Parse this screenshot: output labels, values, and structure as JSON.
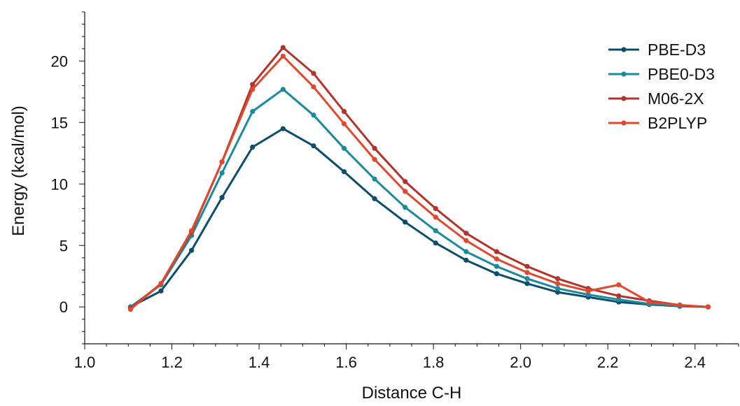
{
  "chart_data": {
    "type": "line",
    "xlabel": "Distance C-H",
    "ylabel": "Energy (kcal/mol)",
    "xlim": [
      1.0,
      2.5
    ],
    "ylim": [
      -3,
      24
    ],
    "xticks": [
      1.0,
      1.2,
      1.4,
      1.6,
      1.8,
      2.0,
      2.2,
      2.4
    ],
    "xtick_labels": [
      "1.0",
      "1.2",
      "1.4",
      "1.6",
      "1.8",
      "2.0",
      "2.2",
      "2.4"
    ],
    "yticks": [
      0,
      5,
      10,
      15,
      20
    ],
    "ytick_labels": [
      "0",
      "5",
      "10",
      "15",
      "20"
    ],
    "legend_position": "top-right",
    "grid": false,
    "x": [
      1.105,
      1.175,
      1.245,
      1.315,
      1.385,
      1.455,
      1.525,
      1.595,
      1.665,
      1.735,
      1.805,
      1.875,
      1.945,
      2.015,
      2.085,
      2.155,
      2.225,
      2.295,
      2.365,
      2.43
    ],
    "series": [
      {
        "name": "PBE-D3",
        "color": "#0b4d6c",
        "values": [
          0.0,
          1.3,
          4.6,
          8.9,
          13.0,
          14.5,
          13.1,
          11.0,
          8.8,
          6.9,
          5.2,
          3.8,
          2.7,
          1.9,
          1.2,
          0.8,
          0.4,
          0.2,
          0.05,
          0.0
        ]
      },
      {
        "name": "PBE0-D3",
        "color": "#1a8a9e",
        "values": [
          0.0,
          1.8,
          5.8,
          10.9,
          15.9,
          17.7,
          15.6,
          12.9,
          10.4,
          8.1,
          6.2,
          4.5,
          3.3,
          2.3,
          1.5,
          1.0,
          0.6,
          0.25,
          0.08,
          0.0
        ]
      },
      {
        "name": "M06-2X",
        "color": "#b3332b",
        "values": [
          -0.1,
          1.9,
          6.1,
          11.8,
          18.1,
          21.1,
          19.0,
          15.9,
          12.9,
          10.2,
          8.0,
          6.0,
          4.5,
          3.3,
          2.3,
          1.5,
          0.9,
          0.5,
          0.15,
          0.0
        ]
      },
      {
        "name": "B2PLYP",
        "color": "#e0482f",
        "values": [
          -0.2,
          1.9,
          6.2,
          11.8,
          17.7,
          20.4,
          17.9,
          14.9,
          12.0,
          9.4,
          7.3,
          5.4,
          3.9,
          2.8,
          1.9,
          1.3,
          1.8,
          0.4,
          0.15,
          0.0
        ]
      }
    ]
  }
}
